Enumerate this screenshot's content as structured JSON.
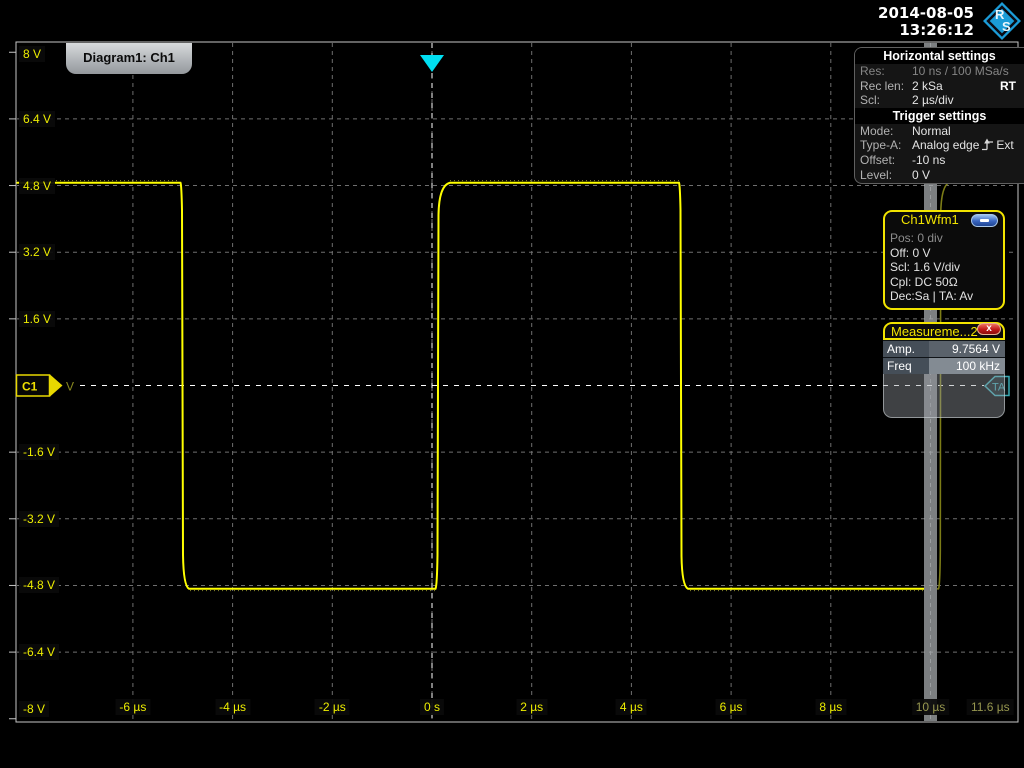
{
  "statusbar": {
    "date": "2014-08-05",
    "time": "13:26:12",
    "logo": "R&S"
  },
  "diagram_tab": {
    "label": "Diagram1: Ch1"
  },
  "horizontal": {
    "title": "Horizontal settings",
    "rows": [
      {
        "label": "Res:",
        "value": "10 ns / 100 MSa/s",
        "dim": true
      },
      {
        "label": "Rec len:",
        "value": "2 kSa",
        "badge": "RT"
      },
      {
        "label": "Scl:",
        "value": "2 µs/div"
      }
    ]
  },
  "trigger": {
    "title": "Trigger settings",
    "rows": [
      {
        "label": "Mode:",
        "value": "Normal"
      },
      {
        "label": "Type-A:",
        "value": "Analog edge",
        "icon": "rising-edge-icon",
        "suffix": "Ext"
      },
      {
        "label": "Offset:",
        "value": "-10 ns"
      },
      {
        "label": "Level:",
        "value": "0 V"
      }
    ]
  },
  "wfm_box": {
    "title": "Ch1Wfm1",
    "rows": [
      {
        "label": "Pos:",
        "value": "0 div",
        "dim": true
      },
      {
        "label": "Off:",
        "value": "0 V"
      },
      {
        "label": "Scl:",
        "value": "1.6 V/div"
      },
      {
        "label": "Cpl:",
        "value": "DC 50Ω"
      },
      {
        "label": "Dec:",
        "value": "Sa | TA: Av",
        "sep": ""
      }
    ]
  },
  "measurement_box": {
    "title": "Measureme...2",
    "close_glyph": "x",
    "rows": [
      {
        "name": "Amp.",
        "value": "9.7564 V"
      },
      {
        "name": "Freq",
        "value": "100 kHz"
      }
    ]
  },
  "markers": {
    "channel_tag": "C1",
    "channel_unit": "V",
    "trigger_annotation_tag": "TA"
  },
  "axes": {
    "y_labels": [
      {
        "text": "8 V",
        "v": 8
      },
      {
        "text": "6.4 V",
        "v": 6.4
      },
      {
        "text": "4.8 V",
        "v": 4.8
      },
      {
        "text": "3.2 V",
        "v": 3.2
      },
      {
        "text": "1.6 V",
        "v": 1.6
      },
      {
        "text": "-1.6 V",
        "v": -1.6
      },
      {
        "text": "-3.2 V",
        "v": -3.2
      },
      {
        "text": "-4.8 V",
        "v": -4.8
      },
      {
        "text": "-6.4 V",
        "v": -6.4
      },
      {
        "text": "-8 V",
        "v": -8
      }
    ],
    "x_labels": [
      {
        "text": "-6 µs",
        "us": -6
      },
      {
        "text": "-4 µs",
        "us": -4
      },
      {
        "text": "-2 µs",
        "us": -2
      },
      {
        "text": "0 s",
        "us": 0
      },
      {
        "text": "2 µs",
        "us": 2
      },
      {
        "text": "4 µs",
        "us": 4
      },
      {
        "text": "6 µs",
        "us": 6
      },
      {
        "text": "8 µs",
        "us": 8
      },
      {
        "text": "10 µs",
        "us": 10,
        "dim": true
      },
      {
        "text": "11.6 µs",
        "us": 11.2,
        "dim": true,
        "edge": true
      }
    ]
  },
  "chart_data": {
    "type": "line",
    "title": "Diagram1: Ch1 — square wave",
    "x_unit": "µs",
    "y_unit": "V",
    "time_per_div_us": 2,
    "volts_per_div": 1.6,
    "x_range_us": [
      -8.35,
      11.75
    ],
    "y_range_v": [
      -8.25,
      8.25
    ],
    "high_v": 4.88,
    "low_v": -4.88,
    "period_us": 10,
    "frequency_khz": 100,
    "measured_amplitude_v": 9.7564,
    "rise_edges_us": [
      0,
      10
    ],
    "fall_edges_us": [
      -5,
      5
    ],
    "record_end_us": 10,
    "trigger_time_us": 0,
    "trigger_level_v": 0,
    "colors": {
      "trace": "#ffff00",
      "trace_dim": "#7c7c16",
      "grid": "#6f6f6f",
      "accent_cyan": "#00dff2",
      "accent_teal": "#39aab4",
      "label_yellow": "#eeee00"
    }
  }
}
